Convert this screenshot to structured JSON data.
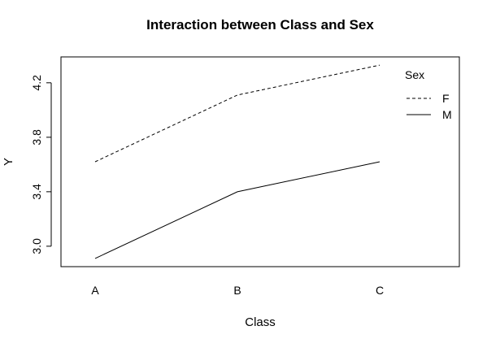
{
  "chart_data": {
    "type": "line",
    "title": "Interaction between Class and Sex",
    "xlabel": "Class",
    "ylabel": "Y",
    "categories": [
      "A",
      "B",
      "C"
    ],
    "series": [
      {
        "name": "F",
        "values": [
          3.62,
          4.11,
          4.33
        ],
        "line_style": "dashed",
        "color": "#000000"
      },
      {
        "name": "M",
        "values": [
          2.91,
          3.4,
          3.62
        ],
        "line_style": "solid",
        "color": "#000000"
      }
    ],
    "ylim": [
      2.85,
      4.39
    ],
    "yticks": [
      3.0,
      3.4,
      3.8,
      4.2
    ],
    "ytick_labels": [
      "3.0",
      "3.4",
      "3.8",
      "4.2"
    ],
    "grid": false,
    "legend": {
      "title": "Sex",
      "placement": "top-right",
      "entries": [
        "F",
        "M"
      ]
    }
  }
}
